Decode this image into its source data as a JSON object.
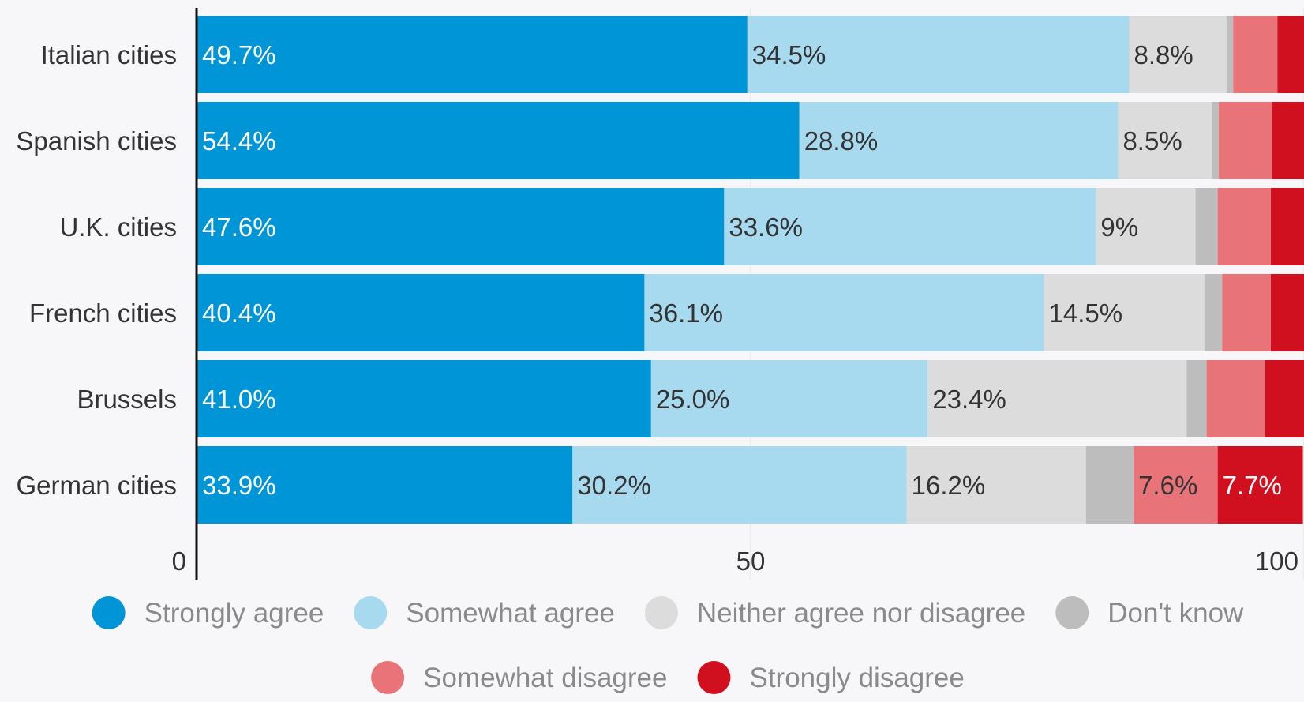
{
  "chart_data": {
    "type": "bar",
    "orientation": "horizontal",
    "stacked": true,
    "categories": [
      "Italian cities",
      "Spanish cities",
      "U.K. cities",
      "French cities",
      "Brussels",
      "German cities"
    ],
    "series": [
      {
        "name": "Strongly agree",
        "color": "#0095d6",
        "label_color": "#ffffff",
        "values": [
          49.7,
          54.4,
          47.6,
          40.4,
          41.0,
          33.9
        ],
        "labels": [
          "49.7%",
          "54.4%",
          "47.6%",
          "40.4%",
          "41.0%",
          "33.9%"
        ]
      },
      {
        "name": "Somewhat agree",
        "color": "#a7d9ef",
        "label_color": "#333333",
        "values": [
          34.5,
          28.8,
          33.6,
          36.1,
          25.0,
          30.2
        ],
        "labels": [
          "34.5%",
          "28.8%",
          "33.6%",
          "36.1%",
          "25.0%",
          "30.2%"
        ]
      },
      {
        "name": "Neither agree nor disagree",
        "color": "#dcdcdc",
        "label_color": "#333333",
        "values": [
          8.8,
          8.5,
          9.0,
          14.5,
          23.4,
          16.2
        ],
        "labels": [
          "8.8%",
          "8.5%",
          "9%",
          "14.5%",
          "23.4%",
          "16.2%"
        ]
      },
      {
        "name": "Don't know",
        "color": "#bdbdbd",
        "label_color": "#333333",
        "values": [
          0.6,
          0.6,
          2.0,
          1.6,
          1.8,
          4.3
        ],
        "labels": [
          "",
          "",
          "",
          "",
          "",
          ""
        ]
      },
      {
        "name": "Somewhat disagree",
        "color": "#e8747a",
        "label_color": "#333333",
        "values": [
          4.0,
          4.8,
          4.8,
          4.4,
          5.3,
          7.6
        ],
        "labels": [
          "",
          "",
          "",
          "",
          "",
          "7.6%"
        ]
      },
      {
        "name": "Strongly disagree",
        "color": "#d0101e",
        "label_color": "#ffffff",
        "values": [
          2.4,
          2.9,
          3.0,
          3.0,
          3.5,
          7.7
        ],
        "labels": [
          "",
          "",
          "",
          "",
          "",
          "7.7%"
        ]
      }
    ],
    "xlim": [
      0,
      100
    ],
    "xticks": [
      0,
      50,
      100
    ],
    "grid": true,
    "legend_position": "bottom"
  }
}
